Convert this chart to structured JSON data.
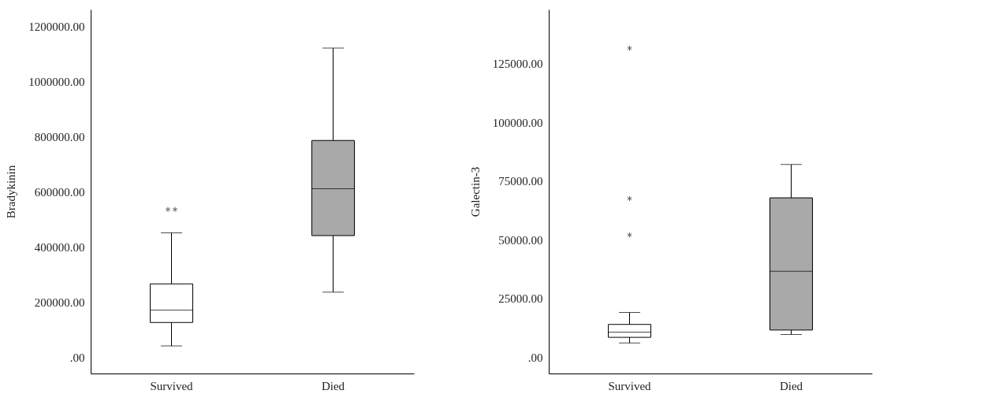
{
  "chart_data": [
    {
      "type": "box",
      "ylabel": "Bradykinin",
      "categories": [
        "Survived",
        "Died"
      ],
      "colors": [
        "#ffffff",
        "#a9a9a9"
      ],
      "ylim": [
        -60000,
        1260000
      ],
      "yticks": [
        {
          "value": 0,
          "label": ".00"
        },
        {
          "value": 200000,
          "label": "200000.00"
        },
        {
          "value": 400000,
          "label": "400000.00"
        },
        {
          "value": 600000,
          "label": "600000.00"
        },
        {
          "value": 800000,
          "label": "800000.00"
        },
        {
          "value": 1000000,
          "label": "1000000.00"
        },
        {
          "value": 1200000,
          "label": "1200000.00"
        }
      ],
      "grid": false,
      "marker": "star",
      "boxes": [
        {
          "low": 40000,
          "q1": 125000,
          "median": 170000,
          "q3": 265000,
          "high": 450000,
          "outliers": [
            535000,
            535000
          ]
        },
        {
          "low": 235000,
          "q1": 440000,
          "median": 610000,
          "q3": 785000,
          "high": 1120000
        }
      ]
    },
    {
      "type": "box",
      "ylabel": "Galectin-3",
      "categories": [
        "Survived",
        "Died"
      ],
      "colors": [
        "#ffffff",
        "#a9a9a9"
      ],
      "ylim": [
        -7000,
        148000
      ],
      "yticks": [
        {
          "value": 0,
          "label": ".00"
        },
        {
          "value": 25000,
          "label": "25000.00"
        },
        {
          "value": 50000,
          "label": "50000.00"
        },
        {
          "value": 75000,
          "label": "75000.00"
        },
        {
          "value": 100000,
          "label": "100000.00"
        },
        {
          "value": 125000,
          "label": "125000.00"
        }
      ],
      "grid": false,
      "marker": "star",
      "boxes": [
        {
          "low": 6000,
          "q1": 8400,
          "median": 10600,
          "q3": 13900,
          "high": 19000,
          "outliers": [
            52000,
            67500,
            131500
          ]
        },
        {
          "low": 9600,
          "q1": 11500,
          "median": 36500,
          "q3": 67800,
          "high": 82000
        }
      ]
    }
  ]
}
